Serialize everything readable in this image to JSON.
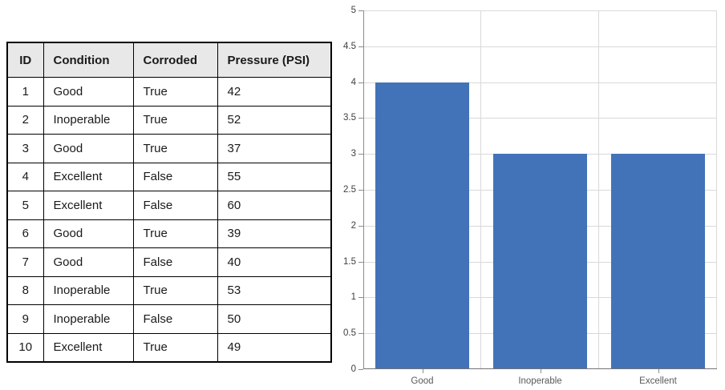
{
  "table": {
    "headers": [
      "ID",
      "Condition",
      "Corroded",
      "Pressure (PSI)"
    ],
    "rows": [
      [
        "1",
        "Good",
        "True",
        "42"
      ],
      [
        "2",
        "Inoperable",
        "True",
        "52"
      ],
      [
        "3",
        "Good",
        "True",
        "37"
      ],
      [
        "4",
        "Excellent",
        "False",
        "55"
      ],
      [
        "5",
        "Excellent",
        "False",
        "60"
      ],
      [
        "6",
        "Good",
        "True",
        "39"
      ],
      [
        "7",
        "Good",
        "False",
        "40"
      ],
      [
        "8",
        "Inoperable",
        "True",
        "53"
      ],
      [
        "9",
        "Inoperable",
        "False",
        "50"
      ],
      [
        "10",
        "Excellent",
        "True",
        "49"
      ]
    ],
    "header_bg": "#e8e8e8",
    "border_color": "#000000"
  },
  "chart_data": {
    "type": "bar",
    "categories": [
      "Good",
      "Inoperable",
      "Excellent"
    ],
    "values": [
      4,
      3,
      3
    ],
    "title": "",
    "xlabel": "",
    "ylabel": "",
    "ylim": [
      0,
      5
    ],
    "ytick_step": 0.5,
    "grid": true,
    "legend": false,
    "bar_color": "#4273B8",
    "gridline_color": "#d9d9d9",
    "axis_color": "#8c8c8c",
    "ytick_label_color": "#404040",
    "xtick_label_color": "#595959"
  }
}
